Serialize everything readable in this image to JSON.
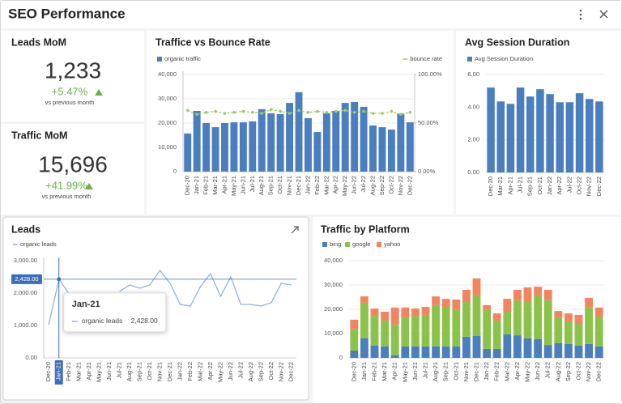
{
  "header": {
    "title": "SEO Performance"
  },
  "kpis": [
    {
      "title": "Leads MoM",
      "value": "1,233",
      "change": "+5.47%",
      "caption": "vs previous month"
    },
    {
      "title": "Traffic MoM",
      "value": "15,696",
      "change": "+41.99%",
      "caption": "vs previous month"
    }
  ],
  "chart_data": [
    {
      "type": "combo",
      "title": "Traffice vs Bounce Rate",
      "categories": [
        "Dec-20",
        "Jan-21",
        "Feb-21",
        "Mar-21",
        "Apr-21",
        "May-21",
        "Jun-21",
        "Jul-21",
        "Aug-21",
        "Sep-21",
        "Oct-21",
        "Nov-21",
        "Dec-21",
        "Jan-22",
        "Feb-22",
        "Mar-22",
        "Apr-22",
        "May-22",
        "Jun-22",
        "Jul-22",
        "Aug-22",
        "Sep-22",
        "Oct-22",
        "Nov-22",
        "Dec-22"
      ],
      "series": [
        {
          "name": "organic traffic",
          "color": "#4a7ebf",
          "values": [
            15700,
            25000,
            20000,
            18300,
            20000,
            20300,
            20300,
            20700,
            25700,
            24000,
            23700,
            28300,
            32700,
            22000,
            16300,
            24000,
            25000,
            28300,
            28700,
            26700,
            19000,
            18300,
            17300,
            24000,
            20300
          ]
        },
        {
          "name": "bounce rate",
          "color": "#9ccc65",
          "axis": "y2",
          "values": [
            63,
            59,
            61,
            62,
            60,
            61,
            62,
            61,
            60,
            64,
            62,
            60,
            63,
            61,
            62,
            61,
            62,
            63,
            61,
            62,
            60,
            60,
            62,
            59,
            61
          ]
        }
      ],
      "ylim": [
        0,
        40000
      ],
      "yticks": [
        0,
        {
          "value": 10000,
          "label": "10,000"
        },
        {
          "value": 20000,
          "label": "20,000"
        },
        {
          "value": 30000,
          "label": "30,000"
        },
        {
          "value": 40000,
          "label": "40,000"
        }
      ],
      "y2lim": [
        0,
        100
      ],
      "y2ticks": [
        {
          "value": 0,
          "label": "0.00%"
        },
        {
          "value": 50,
          "label": "50.00%"
        },
        {
          "value": 100,
          "label": "100.00%"
        }
      ],
      "grid": true
    },
    {
      "type": "bar",
      "title": "Avg Session Duration",
      "categories": [
        "Dec-20",
        "Mar-21",
        "Apr-21",
        "Jul-21",
        "Sep-21",
        "Oct-21",
        "Jan-22",
        "Apr-22",
        "Jul-22",
        "Oct-22",
        "Nov-22",
        "Dec-22"
      ],
      "series": [
        {
          "name": "Avg Session Duration",
          "color": "#4a7ebf",
          "values": [
            5.2,
            4.35,
            4.2,
            5.2,
            4.65,
            5.1,
            4.8,
            4.3,
            4.3,
            4.85,
            4.5,
            4.35
          ]
        }
      ],
      "ylim": [
        0,
        6
      ],
      "yticks": [
        {
          "value": 0,
          "label": "0.00"
        },
        {
          "value": 2,
          "label": "2.00"
        },
        {
          "value": 4,
          "label": "4.00"
        },
        {
          "value": 6,
          "label": "6.00"
        }
      ],
      "grid": true
    },
    {
      "type": "line",
      "title": "Leads",
      "categories": [
        "Dec-20",
        "Jan-21",
        "Feb-21",
        "Mar-21",
        "Apr-21",
        "May-21",
        "Jun-21",
        "Jul-21",
        "Aug-21",
        "Sep-21",
        "Oct-21",
        "Nov-21",
        "Dec-21",
        "Jan-22",
        "Feb-22",
        "Mar-22",
        "Apr-22",
        "May-22",
        "Jun-22",
        "Jul-22",
        "Aug-22",
        "Sep-22",
        "Oct-22",
        "Nov-22",
        "Dec-22"
      ],
      "series": [
        {
          "name": "organic leads",
          "color": "#8ab4e8",
          "values": [
            1030,
            2428,
            1980,
            null,
            null,
            null,
            null,
            2050,
            2250,
            2150,
            2250,
            2700,
            2300,
            1650,
            1600,
            2200,
            2600,
            1900,
            2500,
            1650,
            1650,
            1600,
            1700,
            2300,
            2250
          ]
        }
      ],
      "ylim": [
        0,
        3000
      ],
      "yticks": [
        {
          "value": 0,
          "label": "0.00"
        },
        {
          "value": 1000,
          "label": "1,000.00"
        },
        {
          "value": 2000,
          "label": "2,000.00"
        },
        {
          "value": 3000,
          "label": "3,000.00"
        }
      ],
      "grid": false,
      "tooltip": {
        "category": "Jan-21",
        "value_label": "2,428.00"
      }
    },
    {
      "type": "stacked_bar",
      "title": "Traffic by Platform",
      "categories": [
        "Dec-20",
        "Jan-21",
        "Feb-21",
        "Mar-21",
        "Apr-21",
        "May-21",
        "Jun-21",
        "Jul-21",
        "Aug-21",
        "Sep-21",
        "Oct-21",
        "Nov-21",
        "Dec-21",
        "Jan-22",
        "Feb-22",
        "Mar-22",
        "Apr-22",
        "May-22",
        "Jun-22",
        "Jul-22",
        "Aug-22",
        "Sep-22",
        "Oct-22",
        "Nov-22",
        "Dec-22"
      ],
      "series": [
        {
          "name": "bing",
          "color": "#4a7ebf",
          "values": [
            3000,
            8000,
            5000,
            4700,
            1000,
            4700,
            4700,
            4700,
            4700,
            4700,
            4700,
            8700,
            9000,
            3700,
            3700,
            9700,
            9300,
            8000,
            7700,
            5300,
            6000,
            5700,
            5000,
            5700,
            4700
          ]
        },
        {
          "name": "google",
          "color": "#8bc34a",
          "values": [
            8700,
            14700,
            12300,
            10600,
            12700,
            12000,
            12600,
            13000,
            17000,
            16300,
            15000,
            14300,
            17000,
            16300,
            11600,
            9300,
            14400,
            15000,
            18000,
            18400,
            10700,
            9300,
            9000,
            15000,
            12300
          ]
        },
        {
          "name": "yahoo",
          "color": "#f4845f",
          "values": [
            4000,
            2600,
            3000,
            3700,
            7000,
            4000,
            3000,
            3300,
            3600,
            3300,
            4300,
            5000,
            6700,
            1700,
            3000,
            5300,
            4300,
            6000,
            3600,
            4300,
            2600,
            3300,
            3700,
            4000,
            3700
          ]
        }
      ],
      "ylim": [
        0,
        40000
      ],
      "yticks": [
        0,
        {
          "value": 10000,
          "label": "10,000"
        },
        {
          "value": 20000,
          "label": "20,000"
        },
        {
          "value": 30000,
          "label": "30,000"
        },
        {
          "value": 40000,
          "label": "40,000"
        }
      ],
      "grid": true
    }
  ]
}
